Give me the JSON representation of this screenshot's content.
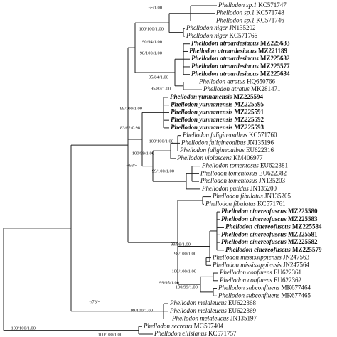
{
  "leaves": [
    {
      "species": "Phellodon sp.1",
      "accession": "KC571747",
      "bold": false
    },
    {
      "species": "Phellodon sp.1",
      "accession": "KC571748",
      "bold": false
    },
    {
      "species": "Phellodon sp.1",
      "accession": "KC571746",
      "bold": false
    },
    {
      "species": "Phellodon niger",
      "accession": "JN135202",
      "bold": false
    },
    {
      "species": "Phellodon niger",
      "accession": "KC571766",
      "bold": false
    },
    {
      "species": "Phellodon atroardesiacus",
      "accession": "MZ225633",
      "bold": true
    },
    {
      "species": "Phellodon atroardesiacus",
      "accession": "MZ221189",
      "bold": true
    },
    {
      "species": "Phellodon atroardesiacus",
      "accession": "MZ225632",
      "bold": true
    },
    {
      "species": "Phellodon atroardesiacus",
      "accession": "MZ225577",
      "bold": true
    },
    {
      "species": "Phellodon atroardesiacus",
      "accession": "MZ225634",
      "bold": true
    },
    {
      "species": "Phellodon atratus",
      "accession": "HQ650766",
      "bold": false
    },
    {
      "species": "Phellodon atratus",
      "accession": "MK281471",
      "bold": false
    },
    {
      "species": "Phellodon yunnanensis",
      "accession": "MZ225594",
      "bold": true
    },
    {
      "species": "Phellodon yunnanensis",
      "accession": "MZ225595",
      "bold": true
    },
    {
      "species": "Phellodon yunnanensis",
      "accession": "MZ225591",
      "bold": true
    },
    {
      "species": "Phellodon yunnanensis",
      "accession": "MZ225592",
      "bold": true
    },
    {
      "species": "Phellodon yunnanensis",
      "accession": "MZ225593",
      "bold": true
    },
    {
      "species": "Phellodon fuligineoalbus",
      "accession": "KC571760",
      "bold": false
    },
    {
      "species": "Phellodon fuligineoalbus",
      "accession": "JN135196",
      "bold": false
    },
    {
      "species": "Phellodon fuligineoalbus",
      "accession": "EU622316",
      "bold": false
    },
    {
      "species": "Phellodon violascens",
      "accession": "KM406977",
      "bold": false
    },
    {
      "species": "Phellodon tomentosus",
      "accession": "EU622381",
      "bold": false
    },
    {
      "species": "Phellodon tomentosus",
      "accession": "EU622382",
      "bold": false
    },
    {
      "species": "Phellodon tomentosus",
      "accession": "JN135203",
      "bold": false
    },
    {
      "species": "Phellodon putidus",
      "accession": "JN135200",
      "bold": false
    },
    {
      "species": "Phellodon fibulatus",
      "accession": "JN135205",
      "bold": false
    },
    {
      "species": "Phellodon fibulatus",
      "accession": "KC571761",
      "bold": false
    },
    {
      "species": "Phellodon cinereofuscus",
      "accession": "MZ225580",
      "bold": true
    },
    {
      "species": "Phellodon cinereofuscus",
      "accession": "MZ225583",
      "bold": true
    },
    {
      "species": "Phellodon cinereofuscus",
      "accession": "MZ225584",
      "bold": true
    },
    {
      "species": "Phellodon cinereofuscus",
      "accession": "MZ225581",
      "bold": true
    },
    {
      "species": "Phellodon cinereofuscus",
      "accession": "MZ225582",
      "bold": true
    },
    {
      "species": "Phellodon cinereofuscus",
      "accession": "MZ225579",
      "bold": true
    },
    {
      "species": "Phellodon mississippiensis",
      "accession": "JN247563",
      "bold": false
    },
    {
      "species": "Phellodon mississippiensis",
      "accession": "JN247564",
      "bold": false
    },
    {
      "species": "Phellodon confluens",
      "accession": "EU622361",
      "bold": false
    },
    {
      "species": "Phellodon confluens",
      "accession": "EU622362",
      "bold": false
    },
    {
      "species": "Phellodon subconfluens",
      "accession": "MK677464",
      "bold": false
    },
    {
      "species": "Phellodon subconfluens",
      "accession": "MK677465",
      "bold": false
    },
    {
      "species": "Phellodon melaleucus",
      "accession": "EU622368",
      "bold": false
    },
    {
      "species": "Phellodon melaleucus",
      "accession": "EU622369",
      "bold": false
    },
    {
      "species": "Phellodon melaleucus",
      "accession": "JN135197",
      "bold": false
    },
    {
      "species": "Phellodon secretus",
      "accession": "MG597404",
      "bold": false
    },
    {
      "species": "Phellodon ellisianus",
      "accession": "KC571757",
      "bold": false
    }
  ],
  "supports": [
    "-/-/1.00",
    "100/100/1.00",
    "90/94/1.00",
    "98/100/1.00",
    "95/84/1.00",
    "95/87/1.00",
    "99/100/1.00",
    "83/62/0.98",
    "100/100/1.00",
    "100/99/1.00",
    "-/63/-",
    "99/100/1.00",
    "99/99/1.00",
    "98/100/1.00",
    "100/100/1.00",
    "99/95/1.00",
    "100/99/1.00",
    "99/100/1.00",
    "-/73/-",
    "100/100/1.00",
    "100/100/1.00"
  ]
}
